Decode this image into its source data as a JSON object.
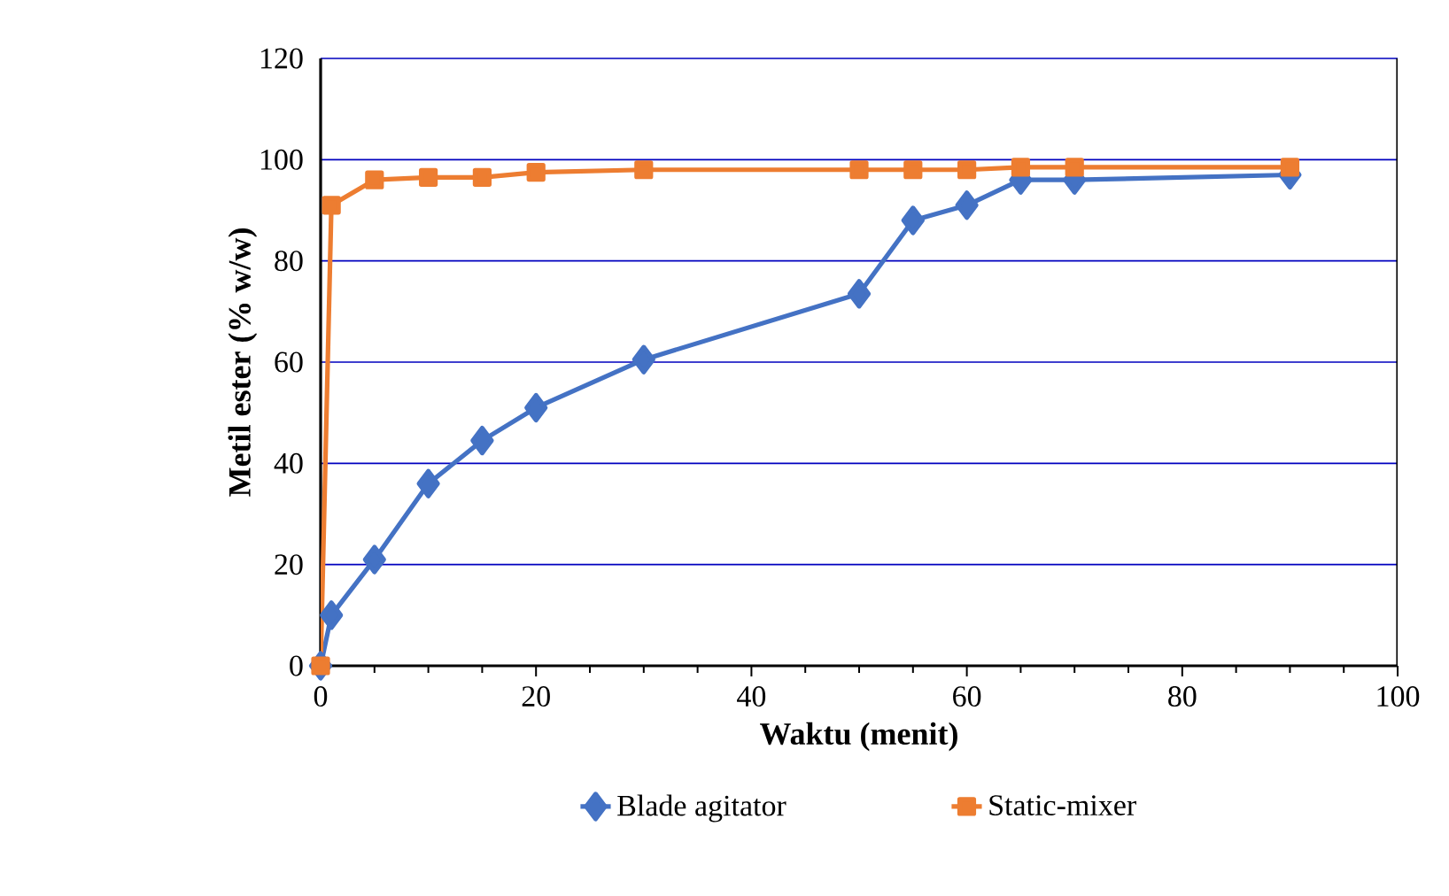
{
  "chart_data": {
    "type": "line",
    "xlabel": "Waktu (menit)",
    "ylabel": "Metil ester (% w/w)",
    "xlim": [
      0,
      100
    ],
    "xticks": [
      0,
      20,
      40,
      60,
      80,
      100
    ],
    "ylim": [
      0,
      120
    ],
    "yticks": [
      0,
      20,
      40,
      60,
      80,
      100,
      120
    ],
    "grid": "y",
    "legend": "bottom",
    "line_style": "solid",
    "series": [
      {
        "name": "Blade agitator",
        "color": "#4472c4",
        "marker": "diamond",
        "x": [
          0,
          1,
          5,
          10,
          15,
          20,
          30,
          50,
          55,
          60,
          65,
          70,
          90
        ],
        "values": [
          0,
          10,
          21,
          36,
          44.5,
          51,
          60.5,
          73.5,
          88,
          91,
          96,
          96,
          97
        ]
      },
      {
        "name": "Static-mixer",
        "color": "#ed7d31",
        "marker": "square",
        "x": [
          0,
          1,
          5,
          10,
          15,
          20,
          30,
          50,
          55,
          60,
          65,
          70,
          90
        ],
        "values": [
          0,
          91,
          96,
          96.5,
          96.5,
          97.5,
          98,
          98,
          98,
          98,
          98.5,
          98.5,
          98.5
        ]
      }
    ]
  }
}
